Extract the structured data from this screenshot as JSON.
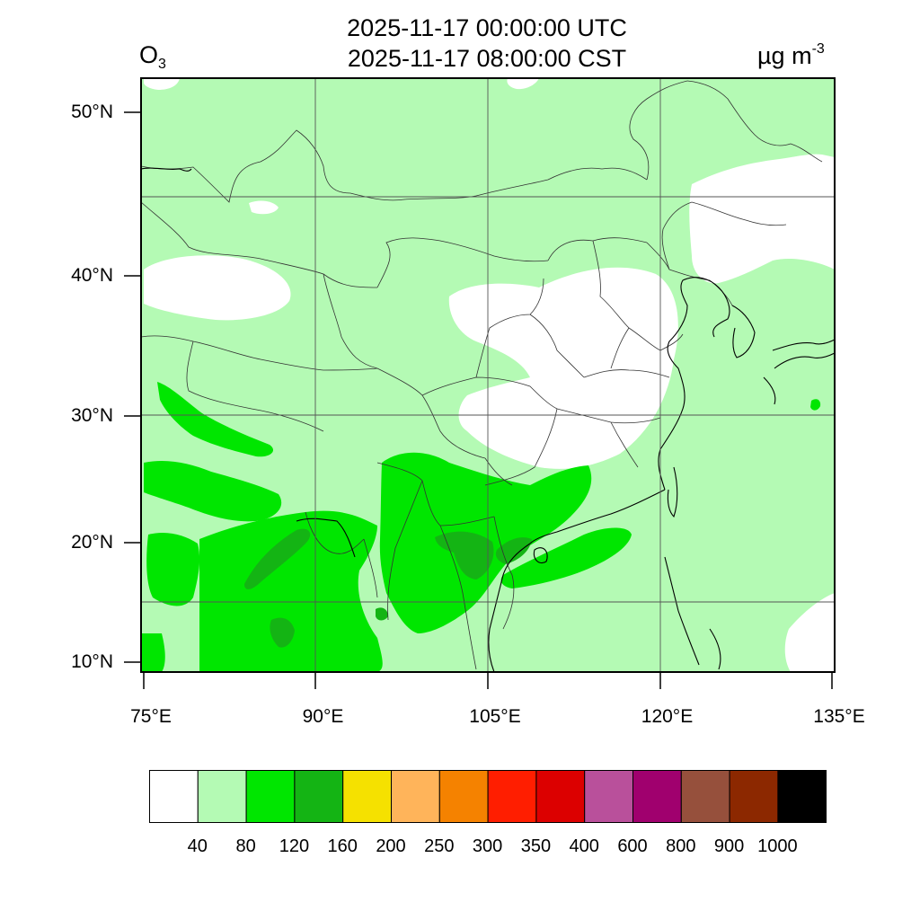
{
  "header": {
    "title_utc": "2025-11-17 00:00:00 UTC",
    "title_cst": "2025-11-17 08:00:00 CST",
    "species_base": "O",
    "species_sub": "3",
    "units_base": "µg m",
    "units_sup": "-3"
  },
  "axes": {
    "lat_ticks": [
      {
        "value": 50,
        "label": "50°N"
      },
      {
        "value": 40,
        "label": "40°N"
      },
      {
        "value": 30,
        "label": "30°N"
      },
      {
        "value": 20,
        "label": "20°N"
      },
      {
        "value": 10,
        "label": "10°N"
      }
    ],
    "lon_ticks": [
      {
        "value": 75,
        "label": "75°E"
      },
      {
        "value": 90,
        "label": "90°E"
      },
      {
        "value": 105,
        "label": "105°E"
      },
      {
        "value": 120,
        "label": "120°E"
      },
      {
        "value": 135,
        "label": "135°E"
      }
    ]
  },
  "colorbar": {
    "colors": [
      "#ffffff",
      "#b4fab4",
      "#00e600",
      "#14b414",
      "#f5e100",
      "#ffb45a",
      "#f58200",
      "#ff1e00",
      "#dc0000",
      "#b9509b",
      "#a0006e",
      "#96503c",
      "#8c2800",
      "#000000"
    ],
    "labels": [
      "40",
      "80",
      "120",
      "160",
      "200",
      "250",
      "300",
      "350",
      "400",
      "600",
      "800",
      "900",
      "1000"
    ]
  }
}
